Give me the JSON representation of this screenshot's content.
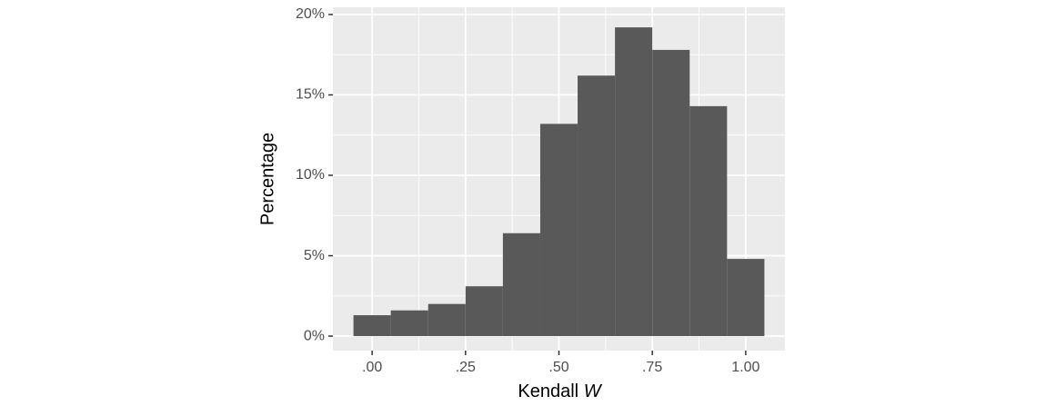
{
  "chart_data": {
    "type": "histogram",
    "x_label": "Kendall",
    "x_label_var": "W",
    "y_label": "Percentage",
    "bins": [
      -0.05,
      0.05,
      0.15,
      0.25,
      0.35,
      0.45,
      0.55,
      0.65,
      0.75,
      0.85,
      0.95,
      1.05
    ],
    "values": [
      1.3,
      1.6,
      2.0,
      3.1,
      6.4,
      13.2,
      16.2,
      19.2,
      17.8,
      14.3,
      4.8
    ],
    "color": "#595959",
    "xlim": [
      -0.105,
      1.105
    ],
    "xticks": [
      {
        "value": 0,
        "label": ".00"
      },
      {
        "value": 0.25,
        "label": ".25"
      },
      {
        "value": 0.5,
        "label": ".50"
      },
      {
        "value": 0.75,
        "label": ".75"
      },
      {
        "value": 1,
        "label": "1.00"
      }
    ],
    "ylim": [
      -0.9,
      20.45
    ],
    "yticks": [
      {
        "value": 0,
        "label": "0%"
      },
      {
        "value": 5,
        "label": "5%"
      },
      {
        "value": 10,
        "label": "10%"
      },
      {
        "value": 15,
        "label": "15%"
      },
      {
        "value": 20,
        "label": "20%"
      }
    ],
    "grid": true,
    "minor_grid": true
  }
}
